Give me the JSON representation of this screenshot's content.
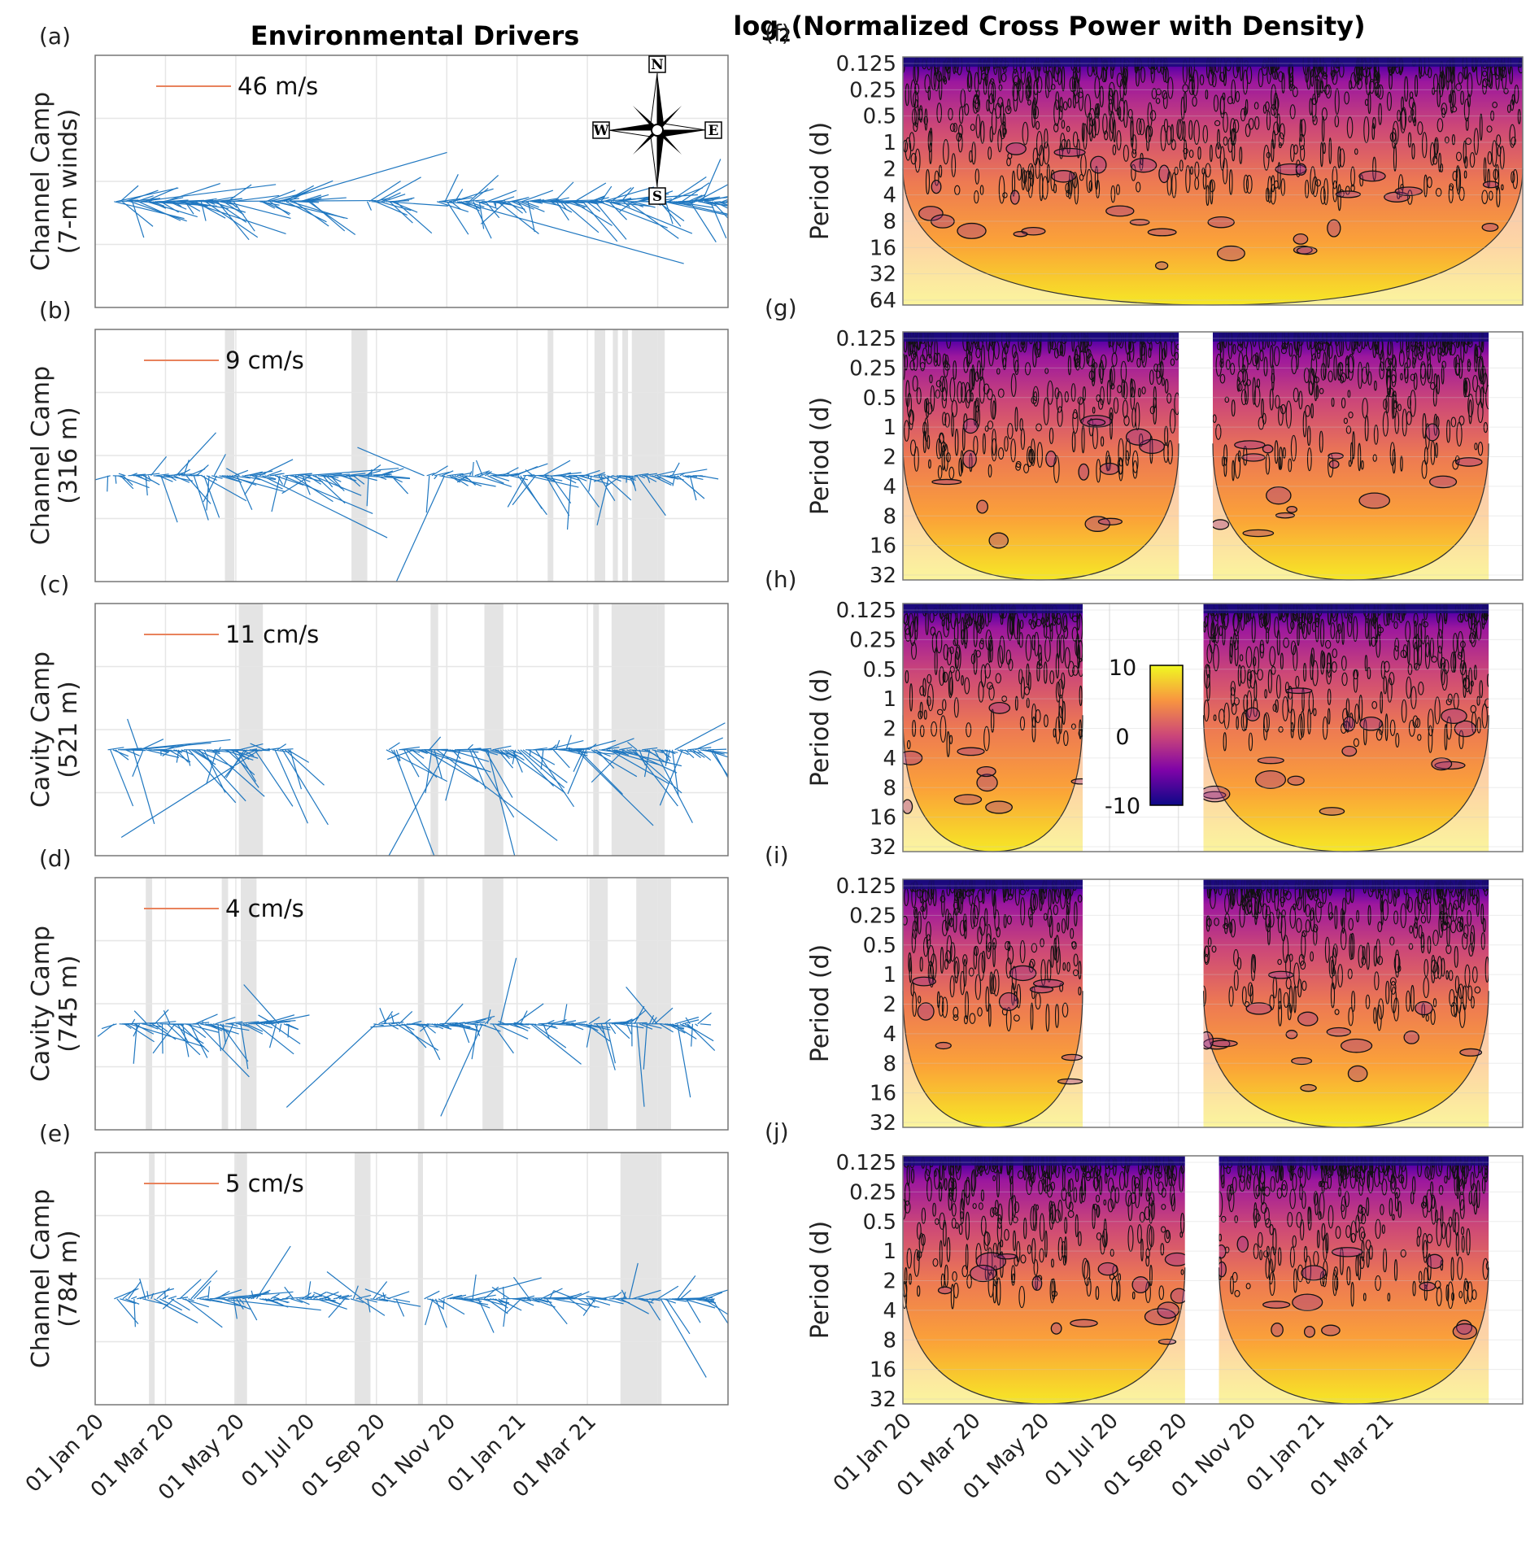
{
  "figure": {
    "left_title": "Environmental Drivers",
    "right_title_main": "log",
    "right_title_sub": "2",
    "right_title_rest": "(Normalized Cross Power with Density)"
  },
  "compass": {
    "n": "N",
    "e": "E",
    "s": "S",
    "w": "W"
  },
  "colorbar": {
    "ticks": [
      "10",
      "0",
      "-10"
    ],
    "range": [
      -10,
      10
    ],
    "colors": [
      "#0d0887",
      "#7e03a8",
      "#cc4778",
      "#f89540",
      "#f0f921"
    ]
  },
  "colors": {
    "vector": "#1f77c0",
    "scale_bar": "#e8825c",
    "shading": "#e4e4e4",
    "grid": "#e6e6e6"
  },
  "x_ticks_left": [
    "01 Jan 20",
    "01 Mar 20",
    "01 May 20",
    "01 Jul 20",
    "01 Sep 20",
    "01 Nov 20",
    "01 Jan 21",
    "01 Mar 21"
  ],
  "x_ticks_right": [
    "01 Jan 20",
    "01 Mar 20",
    "01 May 20",
    "01 Jul 20",
    "01 Sep 20",
    "01 Nov 20",
    "01 Jan 21",
    "01 Mar 21"
  ],
  "chart_data": [
    {
      "type": "quiver",
      "panel": "(a)",
      "ylabel_line1": "Channel Camp",
      "ylabel_line2": "(7-m winds)",
      "scale_label": "46 m/s",
      "segments": [
        [
          0.03,
          0.22
        ],
        [
          0.26,
          0.34
        ],
        [
          0.43,
          0.48
        ],
        [
          0.54,
          1.0
        ]
      ],
      "shading": [],
      "bias": [
        0.1,
        -0.05
      ],
      "amp": 0.6,
      "step": 0.0032,
      "seed": 3
    },
    {
      "type": "quiver",
      "panel": "(b)",
      "ylabel_line1": "Channel Camp",
      "ylabel_line2": "(316 m)",
      "scale_label": "9 cm/s",
      "segments": [
        [
          0.02,
          0.47
        ],
        [
          0.52,
          0.96
        ]
      ],
      "shading": [
        [
          0.205,
          0.22
        ],
        [
          0.405,
          0.43
        ],
        [
          0.715,
          0.724
        ],
        [
          0.789,
          0.806
        ],
        [
          0.818,
          0.826
        ],
        [
          0.833,
          0.842
        ],
        [
          0.848,
          0.9
        ]
      ],
      "bias": [
        0.0,
        -0.1
      ],
      "amp": 0.6,
      "step": 0.004,
      "seed": 7
    },
    {
      "type": "quiver",
      "panel": "(c)",
      "ylabel_line1": "Cavity Camp",
      "ylabel_line2": "(521 m)",
      "scale_label": "11 cm/s",
      "segments": [
        [
          0.02,
          0.31
        ],
        [
          0.46,
          0.98
        ]
      ],
      "shading": [
        [
          0.227,
          0.265
        ],
        [
          0.53,
          0.542
        ],
        [
          0.615,
          0.645
        ],
        [
          0.787,
          0.796
        ],
        [
          0.816,
          0.9
        ]
      ],
      "bias": [
        0.0,
        -0.15
      ],
      "amp": 0.7,
      "step": 0.004,
      "seed": 11
    },
    {
      "type": "quiver",
      "panel": "(d)",
      "ylabel_line1": "Cavity Camp",
      "ylabel_line2": "(745 m)",
      "scale_label": "4 cm/s",
      "segments": [
        [
          0.03,
          0.31
        ],
        [
          0.44,
          0.96
        ]
      ],
      "shading": [
        [
          0.08,
          0.09
        ],
        [
          0.2,
          0.21
        ],
        [
          0.23,
          0.255
        ],
        [
          0.51,
          0.52
        ],
        [
          0.612,
          0.645
        ],
        [
          0.781,
          0.81
        ],
        [
          0.855,
          0.91
        ]
      ],
      "bias": [
        0.0,
        -0.1
      ],
      "amp": 0.6,
      "step": 0.004,
      "seed": 19
    },
    {
      "type": "quiver",
      "panel": "(e)",
      "ylabel_line1": "Channel Camp",
      "ylabel_line2": "(784 m)",
      "scale_label": "5 cm/s",
      "segments": [
        [
          0.03,
          0.48
        ],
        [
          0.52,
          0.98
        ]
      ],
      "shading": [
        [
          0.085,
          0.094
        ],
        [
          0.22,
          0.24
        ],
        [
          0.41,
          0.435
        ],
        [
          0.51,
          0.518
        ],
        [
          0.83,
          0.895
        ]
      ],
      "bias": [
        0.0,
        0.0
      ],
      "amp": 0.55,
      "step": 0.0045,
      "seed": 23
    },
    {
      "type": "heatmap",
      "panel": "(f)",
      "ylabel": "Period (d)",
      "y_ticks": [
        "0.125",
        "0.25",
        "0.5",
        "1",
        "2",
        "4",
        "8",
        "16",
        "32",
        "64"
      ],
      "segments": [
        [
          0.0,
          1.0
        ]
      ],
      "seed": 31
    },
    {
      "type": "heatmap",
      "panel": "(g)",
      "ylabel": "Period (d)",
      "y_ticks": [
        "0.125",
        "0.25",
        "0.5",
        "1",
        "2",
        "4",
        "8",
        "16",
        "32"
      ],
      "segments": [
        [
          0.0,
          0.445
        ],
        [
          0.5,
          0.945
        ]
      ],
      "seed": 37
    },
    {
      "type": "heatmap",
      "panel": "(h)",
      "ylabel": "Period (d)",
      "y_ticks": [
        "0.125",
        "0.25",
        "0.5",
        "1",
        "2",
        "4",
        "8",
        "16",
        "32"
      ],
      "segments": [
        [
          0.0,
          0.29
        ],
        [
          0.485,
          0.945
        ]
      ],
      "seed": 41
    },
    {
      "type": "heatmap",
      "panel": "(i)",
      "ylabel": "Period (d)",
      "y_ticks": [
        "0.125",
        "0.25",
        "0.5",
        "1",
        "2",
        "4",
        "8",
        "16",
        "32"
      ],
      "segments": [
        [
          0.0,
          0.29
        ],
        [
          0.485,
          0.945
        ]
      ],
      "seed": 43
    },
    {
      "type": "heatmap",
      "panel": "(j)",
      "ylabel": "Period (d)",
      "y_ticks": [
        "0.125",
        "0.25",
        "0.5",
        "1",
        "2",
        "4",
        "8",
        "16",
        "32"
      ],
      "segments": [
        [
          0.0,
          0.455
        ],
        [
          0.51,
          0.945
        ]
      ],
      "seed": 47
    }
  ]
}
